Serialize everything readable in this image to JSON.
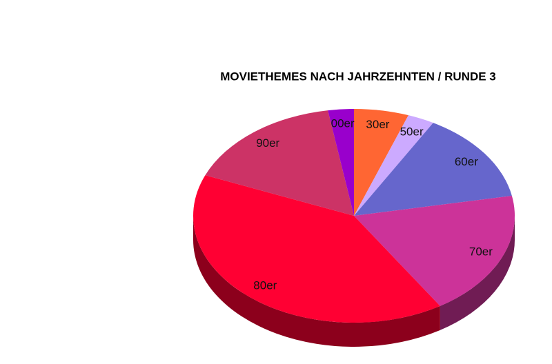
{
  "chart_data": {
    "type": "pie3d",
    "title": "MOVIETHEMES NACH JAHRZEHNTEN / RUNDE 3",
    "categories": [
      "30er",
      "50er",
      "60er",
      "70er",
      "80er",
      "90er",
      "00er"
    ],
    "values": [
      5.5,
      2.7,
      13.8,
      19,
      40.2,
      16.2,
      2.6
    ],
    "colors": [
      "#ff6633",
      "#ccaaff",
      "#6666cc",
      "#cc3399",
      "#ff0033",
      "#cc3366",
      "#9900cc"
    ]
  }
}
